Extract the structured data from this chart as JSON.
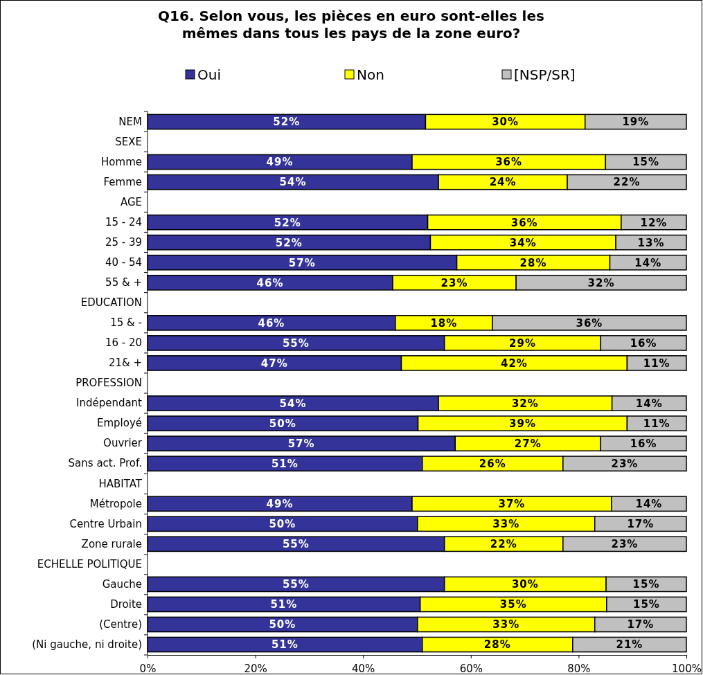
{
  "chart_data": {
    "type": "bar",
    "orientation": "horizontal",
    "stacked": true,
    "title": "Q16. Selon vous, les pièces en euro sont-elles les mêmes dans tous les pays de la zone euro?",
    "categories": [
      "NEM",
      "SEXE",
      "Homme",
      "Femme",
      "AGE",
      "15 - 24",
      "25 - 39",
      "40 - 54",
      "55 & +",
      "EDUCATION",
      "15 & -",
      "16 - 20",
      "21& +",
      "PROFESSION",
      "Indépendant",
      "Employé",
      "Ouvrier",
      "Sans act. Prof.",
      "HABITAT",
      "Métropole",
      "Centre Urbain",
      "Zone rurale",
      "ECHELLE POLITIQUE",
      "Gauche",
      "Droite",
      "(Centre)",
      "(Ni gauche, ni droite)"
    ],
    "series": [
      {
        "name": "Oui",
        "color": "#333399",
        "values": [
          51.6,
          null,
          49.1,
          54.0,
          null,
          52.0,
          52.5,
          57.4,
          45.5,
          null,
          46.0,
          55.1,
          47.1,
          null,
          54.0,
          50.2,
          57.1,
          51.0,
          null,
          49.1,
          50.1,
          55.1,
          null,
          55.1,
          50.6,
          50.1,
          51.0
        ],
        "value_labels": [
          "52%",
          null,
          "49%",
          "54%",
          null,
          "52%",
          "52%",
          "57%",
          "46%",
          null,
          "46%",
          "55%",
          "47%",
          null,
          "54%",
          "50%",
          "57%",
          "51%",
          null,
          "49%",
          "50%",
          "55%",
          null,
          "55%",
          "51%",
          "50%",
          "51%"
        ]
      },
      {
        "name": "Non",
        "color": "#ffff00",
        "values": [
          29.6,
          null,
          35.9,
          23.9,
          null,
          35.9,
          34.4,
          28.4,
          22.9,
          null,
          18.0,
          29.0,
          41.9,
          null,
          32.2,
          38.8,
          27.0,
          26.1,
          null,
          37.0,
          32.9,
          22.0,
          null,
          30.0,
          34.6,
          32.9,
          27.9
        ],
        "value_labels": [
          "30%",
          null,
          "36%",
          "24%",
          null,
          "36%",
          "34%",
          "28%",
          "23%",
          null,
          "18%",
          "29%",
          "42%",
          null,
          "32%",
          "39%",
          "27%",
          "26%",
          null,
          "37%",
          "33%",
          "22%",
          null,
          "30%",
          "35%",
          "33%",
          "28%"
        ]
      },
      {
        "name": "[NSP/SR]",
        "color": "#c0c0c0",
        "values": [
          18.8,
          null,
          15.0,
          22.1,
          null,
          12.1,
          13.1,
          14.2,
          31.6,
          null,
          36.0,
          15.9,
          11.0,
          null,
          13.8,
          11.0,
          15.9,
          22.9,
          null,
          13.9,
          17.0,
          22.9,
          null,
          14.9,
          14.8,
          17.0,
          21.1
        ],
        "value_labels": [
          "19%",
          null,
          "15%",
          "22%",
          null,
          "12%",
          "13%",
          "14%",
          "32%",
          null,
          "36%",
          "16%",
          "11%",
          null,
          "14%",
          "11%",
          "16%",
          "23%",
          null,
          "14%",
          "17%",
          "23%",
          null,
          "15%",
          "15%",
          "17%",
          "21%"
        ]
      }
    ],
    "xlim": [
      0,
      100
    ],
    "xticks": [
      {
        "value": 0,
        "label": "0%"
      },
      {
        "value": 20,
        "label": "20%"
      },
      {
        "value": 40,
        "label": "40%"
      },
      {
        "value": 60,
        "label": "60%"
      },
      {
        "value": 80,
        "label": "80%"
      },
      {
        "value": 100,
        "label": "100%"
      }
    ],
    "legend": "top",
    "grid": false
  }
}
